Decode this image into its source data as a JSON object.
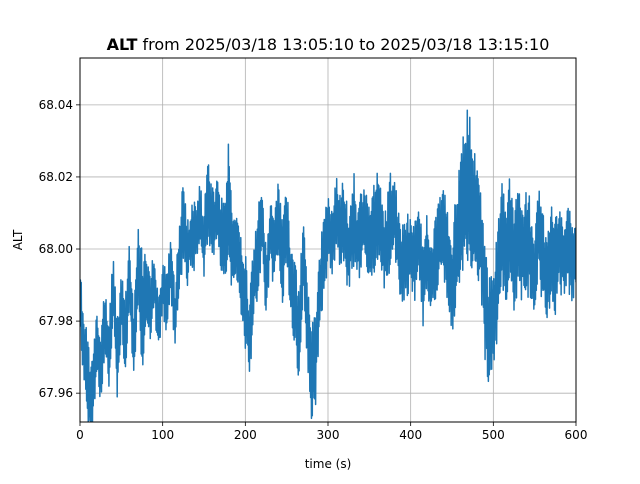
{
  "chart_data": {
    "type": "line",
    "title": {
      "bold": "ALT",
      "rest": " from 2025/03/18 13:05:10 to 2025/03/18 13:15:10"
    },
    "xlabel": "time (s)",
    "ylabel": "ALT",
    "xlim": [
      0,
      600
    ],
    "ylim": [
      67.952,
      68.053
    ],
    "xticks": [
      0,
      100,
      200,
      300,
      400,
      500,
      600
    ],
    "xtick_labels": [
      "0",
      "100",
      "200",
      "300",
      "400",
      "500",
      "600"
    ],
    "yticks": [
      67.96,
      67.98,
      68.0,
      68.02,
      68.04
    ],
    "ytick_labels": [
      "67.96",
      "67.98",
      "68.00",
      "68.02",
      "68.04"
    ],
    "grid": true,
    "legend": "none",
    "series": [
      {
        "color": "#1f77b4",
        "x": [
          0,
          5,
          10,
          15,
          20,
          25,
          30,
          35,
          40,
          45,
          50,
          55,
          60,
          65,
          70,
          75,
          80,
          85,
          90,
          95,
          100,
          105,
          110,
          115,
          120,
          125,
          130,
          135,
          140,
          145,
          150,
          155,
          160,
          165,
          170,
          175,
          180,
          185,
          190,
          195,
          200,
          205,
          210,
          215,
          220,
          225,
          230,
          235,
          240,
          245,
          250,
          255,
          260,
          265,
          270,
          275,
          280,
          285,
          290,
          295,
          300,
          305,
          310,
          315,
          320,
          325,
          330,
          335,
          340,
          345,
          350,
          355,
          360,
          365,
          370,
          375,
          380,
          385,
          390,
          395,
          400,
          405,
          410,
          415,
          420,
          425,
          430,
          435,
          440,
          445,
          450,
          455,
          460,
          465,
          470,
          475,
          480,
          485,
          490,
          495,
          500,
          505,
          510,
          515,
          520,
          525,
          530,
          535,
          540,
          545,
          550,
          555,
          560,
          565,
          570,
          575,
          580,
          585,
          590,
          595,
          600
        ],
        "y": [
          67.985,
          67.972,
          67.962,
          67.957,
          67.975,
          67.966,
          67.982,
          67.97,
          67.99,
          67.968,
          67.985,
          67.975,
          67.993,
          67.972,
          67.995,
          67.98,
          67.988,
          67.983,
          67.992,
          67.978,
          67.99,
          67.985,
          67.995,
          67.98,
          67.998,
          68.008,
          67.998,
          68.005,
          68.003,
          68.01,
          68.0,
          68.015,
          68.005,
          68.01,
          68.005,
          68.0,
          68.012,
          67.998,
          68.0,
          67.992,
          67.985,
          67.975,
          67.99,
          67.998,
          68.01,
          67.99,
          68.005,
          67.998,
          68.01,
          67.995,
          68.008,
          67.99,
          67.985,
          67.975,
          67.998,
          67.98,
          67.965,
          67.97,
          67.99,
          67.998,
          68.005,
          68.0,
          68.01,
          68.005,
          68.008,
          67.998,
          68.01,
          68.002,
          68.005,
          68.008,
          68.0,
          68.005,
          68.01,
          68.002,
          68.0,
          68.008,
          68.012,
          68.0,
          67.995,
          67.998,
          68.0,
          67.995,
          68.005,
          67.99,
          68.0,
          67.992,
          67.998,
          68.002,
          68.005,
          67.998,
          67.99,
          68.0,
          68.01,
          68.015,
          68.02,
          68.012,
          68.01,
          68.002,
          67.985,
          67.975,
          67.98,
          67.99,
          68.005,
          67.998,
          68.005,
          67.995,
          68.005,
          67.998,
          68.002,
          68.0,
          67.992,
          68.005,
          67.998,
          67.99,
          68.002,
          67.995,
          68.0,
          67.998,
          68.002,
          67.995,
          68.0
        ],
        "envelope": [
          0.01,
          0.012,
          0.013,
          0.012,
          0.01,
          0.012,
          0.01,
          0.012,
          0.01,
          0.012,
          0.01,
          0.012,
          0.01,
          0.012,
          0.011,
          0.02,
          0.01,
          0.01,
          0.01,
          0.008,
          0.008,
          0.01,
          0.01,
          0.01,
          0.01,
          0.012,
          0.01,
          0.01,
          0.01,
          0.008,
          0.012,
          0.012,
          0.012,
          0.01,
          0.01,
          0.012,
          0.022,
          0.01,
          0.01,
          0.012,
          0.015,
          0.012,
          0.012,
          0.012,
          0.012,
          0.01,
          0.01,
          0.01,
          0.01,
          0.012,
          0.012,
          0.01,
          0.012,
          0.014,
          0.012,
          0.012,
          0.015,
          0.014,
          0.012,
          0.012,
          0.01,
          0.01,
          0.01,
          0.012,
          0.012,
          0.012,
          0.015,
          0.012,
          0.012,
          0.01,
          0.012,
          0.012,
          0.014,
          0.012,
          0.012,
          0.014,
          0.013,
          0.012,
          0.012,
          0.012,
          0.013,
          0.012,
          0.012,
          0.012,
          0.012,
          0.012,
          0.012,
          0.012,
          0.014,
          0.015,
          0.016,
          0.016,
          0.018,
          0.02,
          0.025,
          0.018,
          0.016,
          0.015,
          0.016,
          0.018,
          0.015,
          0.015,
          0.015,
          0.015,
          0.016,
          0.015,
          0.015,
          0.015,
          0.015,
          0.015,
          0.014,
          0.014,
          0.014,
          0.014,
          0.014,
          0.014,
          0.012,
          0.012,
          0.012,
          0.012,
          0.01
        ]
      }
    ]
  }
}
